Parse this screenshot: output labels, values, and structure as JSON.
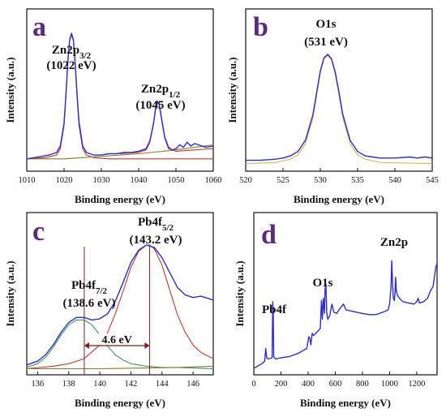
{
  "colors": {
    "spectrum": "#2d2dd2",
    "baseline": "#8a7a2a",
    "fit_red": "#c0392b",
    "fit_green": "#3a9a5a",
    "fit_yellow": "#d4b84a",
    "panel_letter": "#5a2a82",
    "gap_arrow": "#7b1f1f"
  },
  "chart_data": [
    {
      "id": "a",
      "panel_label": "a",
      "type": "line",
      "xlabel": "Binding energy (eV)",
      "ylabel": "Intensity (a.u.)",
      "xlim": [
        1010,
        1060
      ],
      "xticks": [
        1010,
        1020,
        1030,
        1040,
        1050,
        1060
      ],
      "annotations": [
        {
          "main": "Zn2p",
          "sub": "3/2",
          "value": "(1022 eV)"
        },
        {
          "main": "Zn2p",
          "sub": "1/2",
          "value": "(1045 eV)"
        }
      ],
      "series": [
        {
          "role": "spectrum",
          "x": [
            1010,
            1012,
            1014,
            1016,
            1018,
            1019,
            1020,
            1020.5,
            1021,
            1021.5,
            1022,
            1022.5,
            1023,
            1023.5,
            1024,
            1025,
            1026,
            1028,
            1030,
            1032,
            1034,
            1036,
            1038,
            1040,
            1042,
            1043,
            1044,
            1044.5,
            1045,
            1045.5,
            1046,
            1047,
            1048,
            1049,
            1050,
            1051,
            1052,
            1053,
            1054,
            1055,
            1056,
            1058,
            1060
          ],
          "y": [
            0.02,
            0.03,
            0.04,
            0.05,
            0.07,
            0.12,
            0.3,
            0.52,
            0.78,
            0.95,
            1.0,
            0.95,
            0.76,
            0.52,
            0.31,
            0.12,
            0.07,
            0.05,
            0.05,
            0.06,
            0.06,
            0.07,
            0.07,
            0.08,
            0.1,
            0.16,
            0.3,
            0.41,
            0.47,
            0.45,
            0.36,
            0.19,
            0.11,
            0.09,
            0.1,
            0.13,
            0.11,
            0.15,
            0.12,
            0.14,
            0.13,
            0.11,
            0.12
          ]
        },
        {
          "role": "fit_red",
          "x": [
            1010,
            1015,
            1018,
            1019,
            1020,
            1020.5,
            1021,
            1021.5,
            1022,
            1022.5,
            1023,
            1023.5,
            1024,
            1025,
            1026,
            1028,
            1032,
            1060
          ],
          "y": [
            0.02,
            0.03,
            0.05,
            0.1,
            0.28,
            0.5,
            0.76,
            0.94,
            0.99,
            0.94,
            0.74,
            0.5,
            0.28,
            0.1,
            0.05,
            0.03,
            0.02,
            0.02
          ]
        },
        {
          "role": "fit_red",
          "x": [
            1035,
            1040,
            1042,
            1043,
            1044,
            1044.5,
            1045,
            1045.5,
            1046,
            1047,
            1048,
            1050,
            1055,
            1060
          ],
          "y": [
            0.06,
            0.07,
            0.09,
            0.15,
            0.29,
            0.4,
            0.46,
            0.44,
            0.35,
            0.18,
            0.1,
            0.08,
            0.09,
            0.1
          ]
        },
        {
          "role": "baseline",
          "x": [
            1010,
            1020,
            1030,
            1040,
            1050,
            1060
          ],
          "y": [
            0.02,
            0.02,
            0.04,
            0.06,
            0.09,
            0.13
          ]
        }
      ]
    },
    {
      "id": "b",
      "panel_label": "b",
      "type": "line",
      "xlabel": "Binding energy (eV)",
      "ylabel": "Intensity (a.u.)",
      "xlim": [
        520,
        545
      ],
      "xticks": [
        520,
        525,
        530,
        535,
        540,
        545
      ],
      "annotations": [
        {
          "main": "O1s",
          "sub": "",
          "value": "(531 eV)"
        }
      ],
      "series": [
        {
          "role": "spectrum",
          "x": [
            520,
            522,
            524,
            525,
            526,
            527,
            528,
            529,
            529.5,
            530,
            530.5,
            531,
            531.5,
            532,
            532.5,
            533,
            534,
            535,
            536,
            537,
            538,
            540,
            542,
            543,
            544,
            545
          ],
          "y": [
            0.04,
            0.04,
            0.05,
            0.06,
            0.08,
            0.12,
            0.22,
            0.45,
            0.65,
            0.85,
            0.97,
            1.0,
            0.96,
            0.84,
            0.66,
            0.46,
            0.22,
            0.12,
            0.08,
            0.07,
            0.06,
            0.06,
            0.07,
            0.06,
            0.07,
            0.06
          ]
        },
        {
          "role": "fit_yellow",
          "x": [
            520,
            524,
            526,
            527,
            528,
            529,
            529.5,
            530,
            530.5,
            531,
            531.5,
            532,
            532.5,
            533,
            534,
            535,
            536,
            538,
            545
          ],
          "y": [
            0.01,
            0.02,
            0.05,
            0.09,
            0.19,
            0.42,
            0.62,
            0.83,
            0.96,
            0.99,
            0.95,
            0.82,
            0.63,
            0.43,
            0.19,
            0.09,
            0.05,
            0.02,
            0.01
          ]
        }
      ]
    },
    {
      "id": "c",
      "panel_label": "c",
      "type": "line",
      "xlabel": "Binding energy (eV)",
      "ylabel": "Intensity (a.u.)",
      "xlim": [
        135.3,
        147.3
      ],
      "xticks": [
        136,
        138,
        140,
        142,
        144,
        146
      ],
      "annotations": [
        {
          "main": "Pb4f",
          "sub": "7/2",
          "value": "(138.6 eV)"
        },
        {
          "main": "Pb4f",
          "sub": "5/2",
          "value": "(143.2 eV)"
        }
      ],
      "gap_label": "4.6 eV",
      "gap_x": [
        139.0,
        143.2
      ],
      "series": [
        {
          "role": "spectrum",
          "x": [
            135.3,
            136,
            136.5,
            137,
            137.5,
            138,
            138.5,
            139,
            139.5,
            140,
            140.5,
            141,
            141.5,
            142,
            142.5,
            143,
            143.5,
            144,
            144.5,
            145,
            145.5,
            146,
            146.5,
            147.3
          ],
          "y": [
            0.04,
            0.07,
            0.12,
            0.2,
            0.3,
            0.38,
            0.42,
            0.42,
            0.4,
            0.41,
            0.45,
            0.55,
            0.7,
            0.86,
            0.96,
            1.0,
            0.98,
            0.9,
            0.78,
            0.66,
            0.6,
            0.58,
            0.59,
            0.56
          ]
        },
        {
          "role": "fit_green",
          "x": [
            135.3,
            136,
            136.5,
            137,
            137.5,
            138,
            138.5,
            139,
            139.5,
            140,
            140.5,
            141,
            141.5,
            142,
            143,
            144,
            145,
            147.3
          ],
          "y": [
            0.02,
            0.05,
            0.1,
            0.18,
            0.28,
            0.36,
            0.4,
            0.4,
            0.36,
            0.28,
            0.19,
            0.12,
            0.08,
            0.05,
            0.03,
            0.02,
            0.02,
            0.01
          ]
        },
        {
          "role": "fit_red",
          "x": [
            135.3,
            137,
            138,
            139,
            140,
            140.5,
            141,
            141.5,
            142,
            142.5,
            143,
            143.2,
            143.5,
            144,
            144.5,
            145,
            145.5,
            146,
            146.5,
            147.3
          ],
          "y": [
            0.01,
            0.03,
            0.05,
            0.09,
            0.2,
            0.3,
            0.45,
            0.63,
            0.82,
            0.95,
            1.0,
            1.0,
            0.97,
            0.84,
            0.64,
            0.44,
            0.3,
            0.2,
            0.14,
            0.09
          ]
        },
        {
          "role": "baseline",
          "x": [
            135.3,
            140,
            145,
            147.3
          ],
          "y": [
            0.01,
            0.01,
            0.02,
            0.03
          ]
        }
      ]
    },
    {
      "id": "d",
      "panel_label": "d",
      "type": "line",
      "xlabel": "Binding energy (eV)",
      "ylabel": "Intensity (a.u.)",
      "xlim": [
        0,
        1350
      ],
      "xticks": [
        0,
        200,
        400,
        600,
        800,
        1000,
        1200
      ],
      "annotations": [
        {
          "main": "Pb4f",
          "sub": "",
          "value": ""
        },
        {
          "main": "O1s",
          "sub": "",
          "value": ""
        },
        {
          "main": "Zn2p",
          "sub": "",
          "value": ""
        }
      ],
      "series": [
        {
          "role": "spectrum",
          "x": [
            0,
            30,
            60,
            80,
            88,
            95,
            105,
            135,
            139,
            143,
            147,
            160,
            200,
            260,
            330,
            390,
            405,
            412,
            420,
            430,
            440,
            490,
            498,
            505,
            512,
            520,
            525,
            531,
            537,
            545,
            560,
            575,
            590,
            610,
            640,
            660,
            680,
            720,
            760,
            800,
            850,
            900,
            950,
            990,
            1000,
            1010,
            1016,
            1022,
            1028,
            1035,
            1040,
            1045,
            1050,
            1060,
            1080,
            1100,
            1140,
            1180,
            1200,
            1210,
            1220,
            1250,
            1280,
            1300,
            1320,
            1330,
            1340,
            1350
          ],
          "y": [
            0.0,
            0.02,
            0.04,
            0.06,
            0.17,
            0.09,
            0.08,
            0.09,
            0.57,
            0.5,
            0.1,
            0.08,
            0.09,
            0.1,
            0.13,
            0.17,
            0.27,
            0.26,
            0.2,
            0.3,
            0.28,
            0.34,
            0.58,
            0.42,
            0.6,
            0.47,
            0.68,
            0.72,
            0.48,
            0.42,
            0.45,
            0.55,
            0.48,
            0.47,
            0.52,
            0.55,
            0.5,
            0.49,
            0.48,
            0.47,
            0.46,
            0.46,
            0.48,
            0.5,
            0.55,
            0.68,
            0.92,
            0.72,
            0.6,
            0.58,
            0.64,
            0.78,
            0.66,
            0.62,
            0.59,
            0.57,
            0.56,
            0.55,
            0.57,
            0.6,
            0.56,
            0.57,
            0.6,
            0.66,
            0.7,
            0.78,
            0.86,
            0.9
          ]
        }
      ]
    }
  ]
}
